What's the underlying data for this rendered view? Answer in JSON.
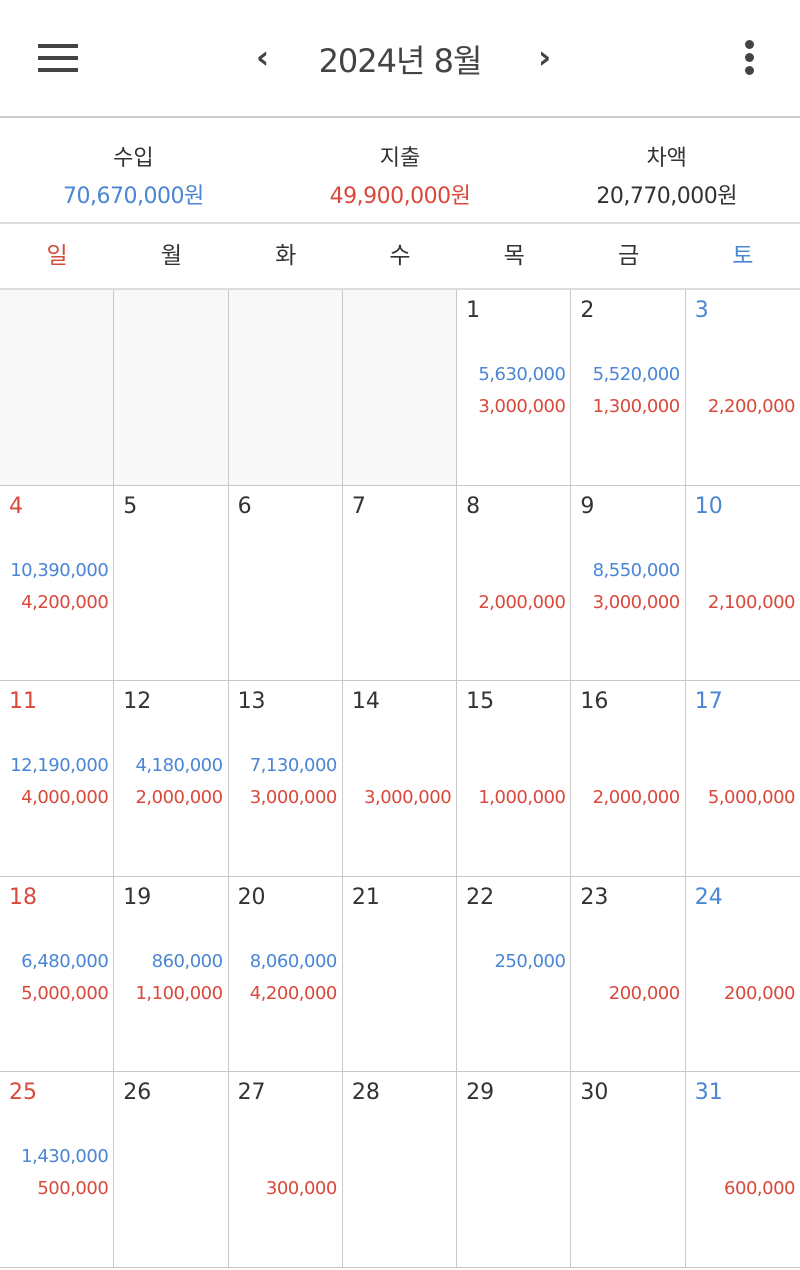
{
  "header": {
    "title": "2024년 8월",
    "prev": "‹",
    "next": "›",
    "menu_icon": "hamburger-icon",
    "more_icon": "kebab-icon"
  },
  "summary": {
    "income_label": "수입",
    "income": "70,670,000원",
    "expense_label": "지출",
    "expense": "49,900,000원",
    "balance_label": "차액",
    "balance": "20,770,000원"
  },
  "colors": {
    "income": "#4a86d4",
    "expense": "#d9493c",
    "sunday": "#d9493c",
    "saturday": "#4a86d4"
  },
  "weekdays": [
    "일",
    "월",
    "화",
    "수",
    "목",
    "금",
    "토"
  ],
  "days": [
    null,
    null,
    null,
    null,
    {
      "d": "1",
      "i": "5,630,000",
      "e": "3,000,000"
    },
    {
      "d": "2",
      "i": "5,520,000",
      "e": "1,300,000"
    },
    {
      "d": "3",
      "i": "",
      "e": "2,200,000"
    },
    {
      "d": "4",
      "i": "10,390,000",
      "e": "4,200,000"
    },
    {
      "d": "5",
      "i": "",
      "e": ""
    },
    {
      "d": "6",
      "i": "",
      "e": ""
    },
    {
      "d": "7",
      "i": "",
      "e": ""
    },
    {
      "d": "8",
      "i": "",
      "e": "2,000,000"
    },
    {
      "d": "9",
      "i": "8,550,000",
      "e": "3,000,000"
    },
    {
      "d": "10",
      "i": "",
      "e": "2,100,000"
    },
    {
      "d": "11",
      "i": "12,190,000",
      "e": "4,000,000"
    },
    {
      "d": "12",
      "i": "4,180,000",
      "e": "2,000,000"
    },
    {
      "d": "13",
      "i": "7,130,000",
      "e": "3,000,000"
    },
    {
      "d": "14",
      "i": "",
      "e": "3,000,000"
    },
    {
      "d": "15",
      "i": "",
      "e": "1,000,000"
    },
    {
      "d": "16",
      "i": "",
      "e": "2,000,000"
    },
    {
      "d": "17",
      "i": "",
      "e": "5,000,000"
    },
    {
      "d": "18",
      "i": "6,480,000",
      "e": "5,000,000"
    },
    {
      "d": "19",
      "i": "860,000",
      "e": "1,100,000"
    },
    {
      "d": "20",
      "i": "8,060,000",
      "e": "4,200,000"
    },
    {
      "d": "21",
      "i": "",
      "e": ""
    },
    {
      "d": "22",
      "i": "250,000",
      "e": ""
    },
    {
      "d": "23",
      "i": "",
      "e": "200,000"
    },
    {
      "d": "24",
      "i": "",
      "e": "200,000"
    },
    {
      "d": "25",
      "i": "1,430,000",
      "e": "500,000"
    },
    {
      "d": "26",
      "i": "",
      "e": ""
    },
    {
      "d": "27",
      "i": "",
      "e": "300,000"
    },
    {
      "d": "28",
      "i": "",
      "e": ""
    },
    {
      "d": "29",
      "i": "",
      "e": ""
    },
    {
      "d": "30",
      "i": "",
      "e": ""
    },
    {
      "d": "31",
      "i": "",
      "e": "600,000"
    }
  ]
}
